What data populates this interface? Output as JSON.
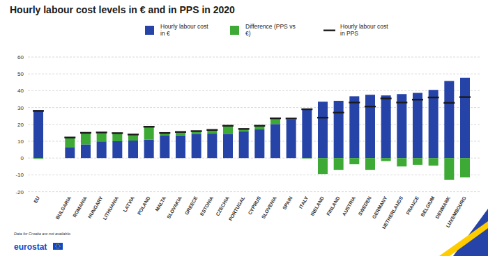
{
  "chart_data": {
    "type": "bar",
    "title": "Hourly labour cost levels in € and in PPS in 2020",
    "categories": [
      "EU",
      null,
      "BULGARIA",
      "ROMANIA",
      "HUNGARY",
      "LITHUANIA",
      "LATVIA",
      "POLAND",
      "MALTA",
      "SLOVAKIA",
      "GREECE",
      "ESTONIA",
      "CZECHIA",
      "PORTUGAL",
      "CYPRUS",
      "SLOVENIA",
      "SPAIN",
      "ITALY",
      "IRELAND",
      "FINLAND",
      "AUSTRIA",
      "SWEDEN",
      "GERMANY",
      "NETHERLANDS",
      "FRANCE",
      "BELGIUM",
      "DENMARK",
      "LUXEMBOURG"
    ],
    "series": [
      {
        "name": "Hourly labour cost in €",
        "color": "#2644a7",
        "type": "bar",
        "values": [
          28.5,
          null,
          6.5,
          8.1,
          9.9,
          10.0,
          10.4,
          11.0,
          13.3,
          13.5,
          14.4,
          14.5,
          14.4,
          16.0,
          17.0,
          20.2,
          22.9,
          29.3,
          33.5,
          34.0,
          36.7,
          37.6,
          37.2,
          38.0,
          38.7,
          40.5,
          45.8,
          47.7
        ]
      },
      {
        "name": "Difference (PPS vs €)",
        "color": "#3daa35",
        "type": "bar",
        "values": [
          -0.5,
          null,
          5.7,
          6.9,
          5.3,
          4.8,
          3.6,
          7.6,
          1.6,
          2.0,
          1.6,
          2.2,
          4.8,
          1.3,
          2.2,
          3.4,
          0.6,
          -0.3,
          -9.5,
          -7.0,
          -3.7,
          -7.0,
          -1.8,
          -5.0,
          -4.0,
          -4.5,
          -13.0,
          -11.5
        ]
      },
      {
        "name": "Hourly labour cost in PPS",
        "color": "#1a1a1a",
        "type": "scatter",
        "marker": "dash",
        "values": [
          28.0,
          null,
          12.2,
          15.0,
          15.2,
          14.8,
          14.0,
          18.6,
          14.9,
          15.5,
          16.0,
          16.7,
          19.2,
          17.3,
          19.2,
          23.6,
          23.5,
          29.0,
          24.0,
          27.0,
          33.0,
          30.6,
          35.4,
          33.0,
          34.7,
          36.0,
          32.8,
          36.2
        ]
      }
    ],
    "ylim": [
      -20,
      60
    ],
    "yticks": [
      -20,
      -10,
      0,
      10,
      20,
      30,
      40,
      50,
      60
    ],
    "grid": true,
    "stacked": true,
    "legend": "top",
    "annotations": [
      "Data for Croatia are not available."
    ],
    "source": "eurostat"
  }
}
